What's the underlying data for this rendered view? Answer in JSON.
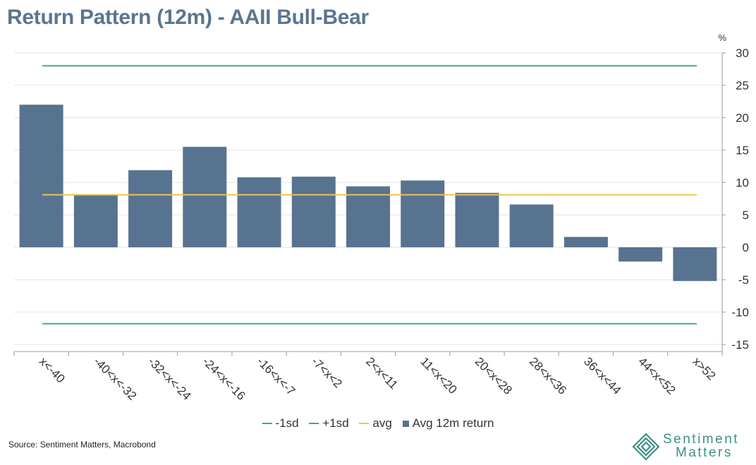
{
  "title": "Return Pattern (12m) - AAII Bull-Bear",
  "source": "Source: Sentiment Matters, Macrobond",
  "logo": {
    "line1": "Sentiment",
    "line2": "Matters"
  },
  "colors": {
    "bar": "#57738f",
    "sd": "#3ea88a",
    "avg": "#f0c24e",
    "grid": "#e3e3e3",
    "axis": "#9a9a9a",
    "text": "#333333"
  },
  "chart_data": {
    "type": "bar",
    "title": "Return Pattern (12m) - AAII Bull-Bear",
    "unit_label": "%",
    "ylim": [
      -15,
      30
    ],
    "yticks": [
      30,
      25,
      20,
      15,
      10,
      5,
      0,
      -5,
      -10,
      -15
    ],
    "grid": true,
    "legend_position": "bottom-center",
    "categories": [
      "x<-40",
      "-40<x<-32",
      "-32<x<-24",
      "-24<x<-16",
      "-16<x<-7",
      "-7<x<2",
      "2<x<11",
      "11<x<20",
      "20<x<28",
      "28<x<36",
      "36<x<44",
      "44<x<52",
      "x>52"
    ],
    "series": [
      {
        "name": "Avg 12m return",
        "kind": "bar",
        "values": [
          22.0,
          8.0,
          11.9,
          15.5,
          10.8,
          10.9,
          9.4,
          10.3,
          8.4,
          6.6,
          1.6,
          -2.2,
          -5.2
        ]
      },
      {
        "name": "+1sd",
        "kind": "hline",
        "value": 28.0
      },
      {
        "name": "-1sd",
        "kind": "hline",
        "value": -11.8
      },
      {
        "name": "avg",
        "kind": "hline",
        "value": 8.1
      }
    ],
    "legend": [
      "-1sd",
      "+1sd",
      "avg",
      "Avg 12m return"
    ]
  }
}
